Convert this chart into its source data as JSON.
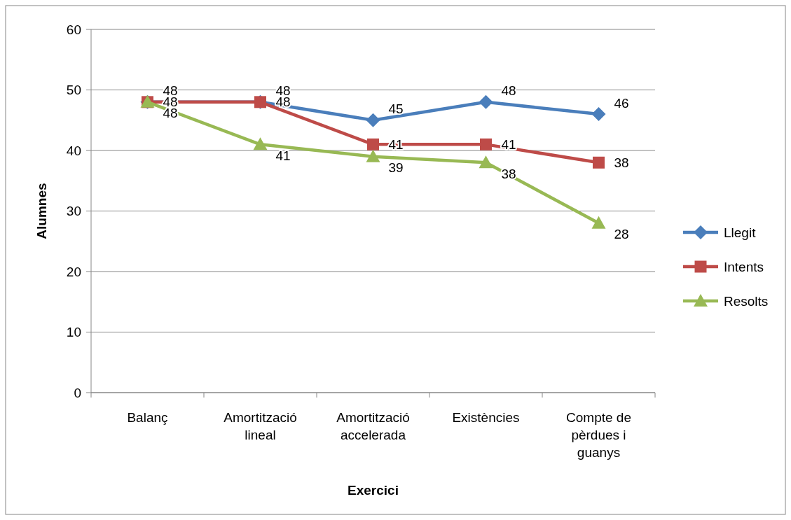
{
  "chart_data": {
    "type": "line",
    "xlabel": "Exercici",
    "ylabel": "Alumnes",
    "categories": [
      "Balanç",
      "Amortització lineal",
      "Amortització accelerada",
      "Existències",
      "Compte de pèrdues i guanys"
    ],
    "series": [
      {
        "name": "Llegit",
        "color": "#4a7ebb",
        "marker": "diamond",
        "values": [
          48,
          48,
          45,
          48,
          46
        ]
      },
      {
        "name": "Intents",
        "color": "#be4b48",
        "marker": "square",
        "values": [
          48,
          48,
          41,
          41,
          38
        ]
      },
      {
        "name": "Resolts",
        "color": "#98b954",
        "marker": "triangle",
        "values": [
          48,
          41,
          39,
          38,
          28
        ]
      }
    ],
    "ylim": [
      0,
      60
    ],
    "yticks": [
      0,
      10,
      20,
      30,
      40,
      50,
      60
    ],
    "grid": "y",
    "legend": "right",
    "data_labels": true
  }
}
